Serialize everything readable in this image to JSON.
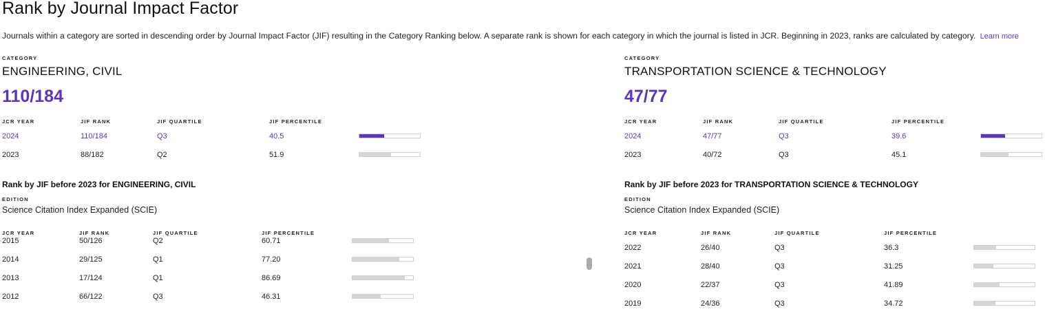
{
  "page": {
    "title": "Rank by Journal Impact Factor",
    "description": "Journals within a category are sorted in descending order by Journal Impact Factor (JIF) resulting in the Category Ranking below. A separate rank is shown for each category in which the journal is listed in JCR. Beginning in 2023, ranks are calculated by category.",
    "learn_more": "Learn more"
  },
  "headers": {
    "category": "CATEGORY",
    "edition": "EDITION",
    "jcr_year": "JCR YEAR",
    "jif_rank": "JIF RANK",
    "jif_quartile": "JIF QUARTILE",
    "jif_percentile": "JIF PERCENTILE"
  },
  "colors": {
    "accent": "#5e33bf",
    "bar_track": "#d6d6d6"
  },
  "categories": [
    {
      "name": "ENGINEERING, CIVIL",
      "rank": "110/184",
      "rows": [
        {
          "year": "2024",
          "rank": "110/184",
          "quartile": "Q3",
          "percentile": "40.5",
          "pct": 40.5
        },
        {
          "year": "2023",
          "rank": "88/182",
          "quartile": "Q2",
          "percentile": "51.9",
          "pct": 51.9
        }
      ],
      "before_title": "Rank by JIF before 2023 for ENGINEERING, CIVIL",
      "edition": "Science Citation Index Expanded (SCIE)",
      "before_rows": [
        {
          "year": "2015",
          "rank": "50/126",
          "quartile": "Q2",
          "percentile": "60.71",
          "pct": 60.71
        },
        {
          "year": "2014",
          "rank": "29/125",
          "quartile": "Q1",
          "percentile": "77.20",
          "pct": 77.2
        },
        {
          "year": "2013",
          "rank": "17/124",
          "quartile": "Q1",
          "percentile": "86.69",
          "pct": 86.69
        },
        {
          "year": "2012",
          "rank": "66/122",
          "quartile": "Q3",
          "percentile": "46.31",
          "pct": 46.31
        }
      ]
    },
    {
      "name": "TRANSPORTATION SCIENCE & TECHNOLOGY",
      "rank": "47/77",
      "rows": [
        {
          "year": "2024",
          "rank": "47/77",
          "quartile": "Q3",
          "percentile": "39.6",
          "pct": 39.6
        },
        {
          "year": "2023",
          "rank": "40/72",
          "quartile": "Q3",
          "percentile": "45.1",
          "pct": 45.1
        }
      ],
      "before_title": "Rank by JIF before 2023 for TRANSPORTATION SCIENCE & TECHNOLOGY",
      "edition": "Science Citation Index Expanded (SCIE)",
      "before_rows": [
        {
          "year": "2022",
          "rank": "26/40",
          "quartile": "Q3",
          "percentile": "36.3",
          "pct": 36.3
        },
        {
          "year": "2021",
          "rank": "28/40",
          "quartile": "Q3",
          "percentile": "31.25",
          "pct": 31.25
        },
        {
          "year": "2020",
          "rank": "22/37",
          "quartile": "Q3",
          "percentile": "41.89",
          "pct": 41.89
        },
        {
          "year": "2019",
          "rank": "24/36",
          "quartile": "Q3",
          "percentile": "34.72",
          "pct": 34.72
        }
      ]
    }
  ]
}
